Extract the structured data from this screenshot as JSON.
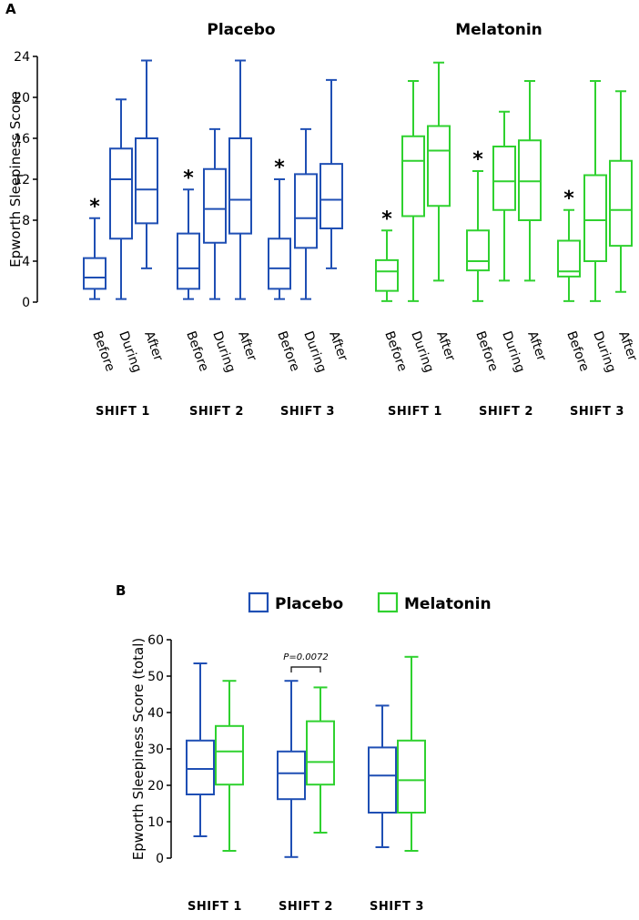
{
  "colors": {
    "placebo": "#1f4fb4",
    "melatonin": "#2fd12f",
    "axis": "#000000"
  },
  "chart_data": [
    {
      "type": "boxplot",
      "panel_label": "A",
      "ylabel": "Epworth Sleepiness Score",
      "ylim": [
        0,
        24
      ],
      "yticks": [
        0,
        4,
        8,
        12,
        16,
        20,
        24
      ],
      "timepoints": [
        "Before",
        "During",
        "After"
      ],
      "groups": [
        {
          "name": "Placebo",
          "color_key": "placebo",
          "shifts": [
            {
              "label": "SHIFT 1",
              "boxes": [
                {
                  "timepoint": "Before",
                  "min": 0.3,
                  "q1": 1.3,
                  "median": 2.4,
                  "q3": 4.3,
                  "max": 8.2,
                  "mark": "*"
                },
                {
                  "timepoint": "During",
                  "min": 0.3,
                  "q1": 6.2,
                  "median": 12,
                  "q3": 15,
                  "max": 19.8,
                  "mark": ""
                },
                {
                  "timepoint": "After",
                  "min": 3.3,
                  "q1": 7.7,
                  "median": 11,
                  "q3": 16,
                  "max": 23.6,
                  "mark": ""
                }
              ]
            },
            {
              "label": "SHIFT 2",
              "boxes": [
                {
                  "timepoint": "Before",
                  "min": 0.3,
                  "q1": 1.3,
                  "median": 3.3,
                  "q3": 6.7,
                  "max": 11,
                  "mark": "*"
                },
                {
                  "timepoint": "During",
                  "min": 0.3,
                  "q1": 5.8,
                  "median": 9.1,
                  "q3": 13,
                  "max": 16.9,
                  "mark": ""
                },
                {
                  "timepoint": "After",
                  "min": 0.3,
                  "q1": 6.7,
                  "median": 10,
                  "q3": 16,
                  "max": 23.6,
                  "mark": ""
                }
              ]
            },
            {
              "label": "SHIFT 3",
              "boxes": [
                {
                  "timepoint": "Before",
                  "min": 0.3,
                  "q1": 1.3,
                  "median": 3.3,
                  "q3": 6.2,
                  "max": 12,
                  "mark": "*"
                },
                {
                  "timepoint": "During",
                  "min": 0.3,
                  "q1": 5.3,
                  "median": 8.2,
                  "q3": 12.5,
                  "max": 16.9,
                  "mark": ""
                },
                {
                  "timepoint": "After",
                  "min": 3.3,
                  "q1": 7.2,
                  "median": 10,
                  "q3": 13.5,
                  "max": 21.7,
                  "mark": ""
                }
              ]
            }
          ]
        },
        {
          "name": "Melatonin",
          "color_key": "melatonin",
          "shifts": [
            {
              "label": "SHIFT 1",
              "boxes": [
                {
                  "timepoint": "Before",
                  "min": 0.1,
                  "q1": 1.1,
                  "median": 3,
                  "q3": 4.1,
                  "max": 7,
                  "mark": "*"
                },
                {
                  "timepoint": "During",
                  "min": 0.1,
                  "q1": 8.4,
                  "median": 13.8,
                  "q3": 16.2,
                  "max": 21.6,
                  "mark": ""
                },
                {
                  "timepoint": "After",
                  "min": 2.1,
                  "q1": 9.4,
                  "median": 14.8,
                  "q3": 17.2,
                  "max": 23.4,
                  "mark": ""
                }
              ]
            },
            {
              "label": "SHIFT 2",
              "boxes": [
                {
                  "timepoint": "Before",
                  "min": 0.1,
                  "q1": 3.1,
                  "median": 4,
                  "q3": 7,
                  "max": 12.8,
                  "mark": "*"
                },
                {
                  "timepoint": "During",
                  "min": 2.1,
                  "q1": 9,
                  "median": 11.8,
                  "q3": 15.2,
                  "max": 18.6,
                  "mark": ""
                },
                {
                  "timepoint": "After",
                  "min": 2.1,
                  "q1": 8,
                  "median": 11.8,
                  "q3": 15.8,
                  "max": 21.6,
                  "mark": ""
                }
              ]
            },
            {
              "label": "SHIFT 3",
              "boxes": [
                {
                  "timepoint": "Before",
                  "min": 0.1,
                  "q1": 2.5,
                  "median": 3,
                  "q3": 6,
                  "max": 9,
                  "mark": "*"
                },
                {
                  "timepoint": "During",
                  "min": 0.1,
                  "q1": 4,
                  "median": 8,
                  "q3": 12.4,
                  "max": 21.6,
                  "mark": ""
                },
                {
                  "timepoint": "After",
                  "min": 1,
                  "q1": 5.5,
                  "median": 9,
                  "q3": 13.8,
                  "max": 20.6,
                  "mark": ""
                }
              ]
            }
          ]
        }
      ]
    },
    {
      "type": "boxplot",
      "panel_label": "B",
      "ylabel": "Epworth Sleepiness Score (total)",
      "ylim": [
        0,
        60
      ],
      "yticks": [
        0,
        10,
        20,
        30,
        40,
        50,
        60
      ],
      "legend": [
        {
          "label": "Placebo",
          "color_key": "placebo"
        },
        {
          "label": "Melatonin",
          "color_key": "melatonin"
        }
      ],
      "annotation": {
        "text": "P=0.0072",
        "shift": "SHIFT 2"
      },
      "shifts": [
        {
          "label": "SHIFT 1",
          "placebo": {
            "min": 6,
            "q1": 17.5,
            "median": 24.5,
            "q3": 32.3,
            "max": 53.5
          },
          "melatonin": {
            "min": 2,
            "q1": 20.2,
            "median": 29.3,
            "q3": 36.3,
            "max": 48.7
          }
        },
        {
          "label": "SHIFT 2",
          "placebo": {
            "min": 0.3,
            "q1": 16.2,
            "median": 23.3,
            "q3": 29.3,
            "max": 48.7
          },
          "melatonin": {
            "min": 7,
            "q1": 20.2,
            "median": 26.4,
            "q3": 37.6,
            "max": 46.9
          }
        },
        {
          "label": "SHIFT 3",
          "placebo": {
            "min": 3,
            "q1": 12.5,
            "median": 22.7,
            "q3": 30.4,
            "max": 41.9
          },
          "melatonin": {
            "min": 2,
            "q1": 12.5,
            "median": 21.4,
            "q3": 32.3,
            "max": 55.3
          }
        }
      ]
    }
  ]
}
